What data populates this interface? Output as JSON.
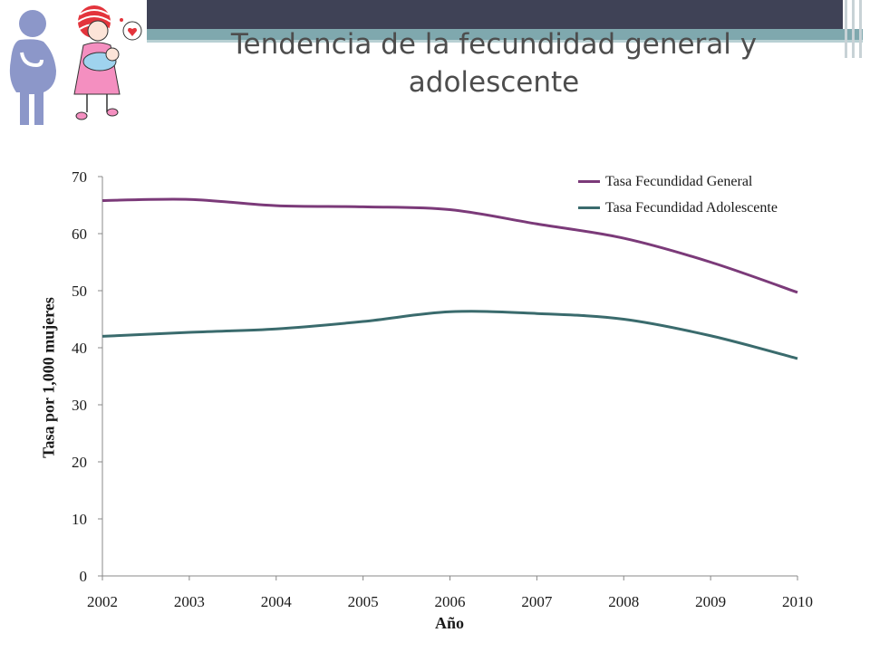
{
  "slide": {
    "title": "Tendencia de la fecundidad general y adolescente",
    "colors": {
      "header_dark": "#3f4256",
      "header_teal": "#7fa8ae"
    },
    "icons": [
      "pregnant-woman-icon",
      "mother-with-baby-icon"
    ]
  },
  "chart_data": {
    "type": "line",
    "title": "",
    "xlabel": "Año",
    "ylabel": "Tasa por 1,000 mujeres",
    "x": [
      "2002",
      "2003",
      "2004",
      "2005",
      "2006",
      "2007",
      "2008",
      "2009",
      "2010"
    ],
    "ylim": [
      0,
      70
    ],
    "yticks": [
      "0",
      "10",
      "20",
      "30",
      "40",
      "50",
      "60",
      "70"
    ],
    "grid": false,
    "legend_position": "top-right",
    "series": [
      {
        "name": "Tasa Fecundidad General",
        "color": "#7b3a79",
        "values": [
          65.8,
          66.0,
          64.9,
          64.7,
          64.2,
          61.7,
          59.2,
          55.0,
          49.7
        ]
      },
      {
        "name": "Tasa Fecundidad Adolescente",
        "color": "#3a6b6d",
        "values": [
          42.0,
          42.7,
          43.3,
          44.6,
          46.3,
          46.0,
          45.0,
          42.1,
          38.1
        ]
      }
    ]
  }
}
